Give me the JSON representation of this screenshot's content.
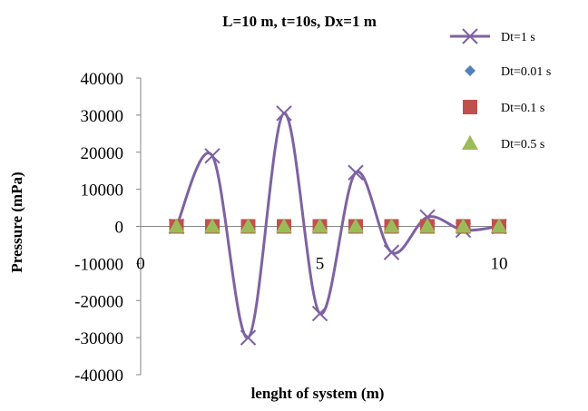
{
  "chart_data": {
    "type": "line",
    "title": "L=10 m, t=10s, Dx=1 m",
    "xlabel": "lenght of system (m)",
    "ylabel": "Pressure (mPa)",
    "xlim": [
      0,
      10
    ],
    "ylim": [
      -40000,
      40000
    ],
    "x_ticks": [
      "0",
      "5",
      "10"
    ],
    "y_ticks": [
      "40000",
      "30000",
      "20000",
      "10000",
      "0",
      "-10000",
      "-20000",
      "-30000",
      "-40000"
    ],
    "grid": false,
    "legend_position": "right",
    "series": [
      {
        "name": "Dt=1 s",
        "marker": "x",
        "smooth": true,
        "color": "#7e62a1",
        "x": [
          1,
          2,
          3,
          4,
          5,
          6,
          7,
          8,
          9,
          10
        ],
        "y": [
          0,
          19000,
          -30000,
          30500,
          -23500,
          14500,
          -7000,
          2500,
          -1000,
          0
        ]
      },
      {
        "name": "Dt=0.01 s",
        "marker": "diamond",
        "color": "#4f81bd",
        "x": [
          1,
          2,
          3,
          4,
          5,
          6,
          7,
          8,
          9,
          10
        ],
        "y": [
          0,
          0,
          0,
          0,
          0,
          0,
          0,
          0,
          0,
          0
        ]
      },
      {
        "name": "Dt=0.1 s",
        "marker": "square",
        "color": "#c0504d",
        "x": [
          1,
          2,
          3,
          4,
          5,
          6,
          7,
          8,
          9,
          10
        ],
        "y": [
          0,
          0,
          0,
          0,
          0,
          0,
          0,
          0,
          0,
          0
        ]
      },
      {
        "name": "Dt=0.5 s",
        "marker": "triangle",
        "color": "#9bbb59",
        "x": [
          1,
          2,
          3,
          4,
          5,
          6,
          7,
          8,
          9,
          10
        ],
        "y": [
          0,
          0,
          0,
          0,
          0,
          0,
          0,
          0,
          0,
          0
        ]
      }
    ]
  }
}
